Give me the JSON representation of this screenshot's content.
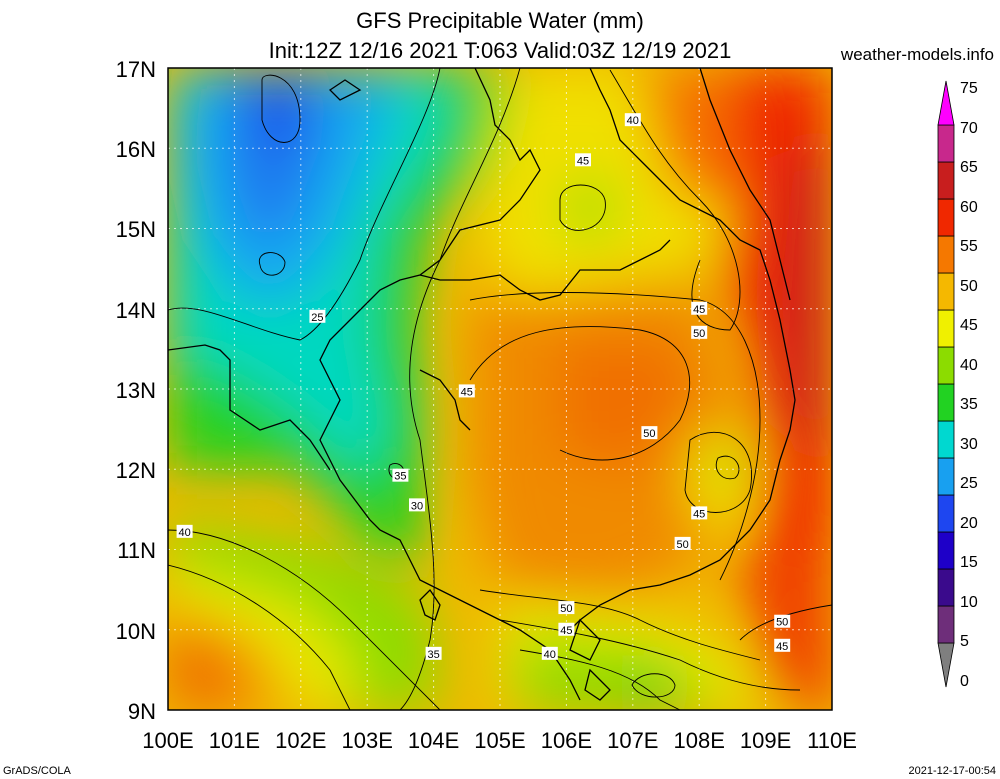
{
  "title": {
    "line1": "GFS Precipitable Water (mm)",
    "line2": "Init:12Z 12/16 2021 T:063 Valid:03Z 12/19 2021"
  },
  "site": "weather-models.info",
  "footer": {
    "left": "GrADS/COLA",
    "right": "2021-12-17-00:54"
  },
  "map": {
    "lat_labels": [
      "9N",
      "10N",
      "11N",
      "12N",
      "13N",
      "14N",
      "15N",
      "16N",
      "17N"
    ],
    "lon_labels": [
      "100E",
      "101E",
      "102E",
      "103E",
      "104E",
      "105E",
      "106E",
      "107E",
      "108E",
      "109E",
      "110E"
    ],
    "lat_range": [
      9,
      17
    ],
    "lon_range": [
      100,
      110
    ],
    "grid": true
  },
  "colorbar": {
    "labels": [
      "0",
      "5",
      "10",
      "15",
      "20",
      "25",
      "30",
      "35",
      "40",
      "45",
      "50",
      "55",
      "60",
      "65",
      "70",
      "75"
    ],
    "colors": [
      "#7f7f7f",
      "#6e2e7a",
      "#3a0a8c",
      "#1e00c8",
      "#1e46f0",
      "#18a0f0",
      "#00d8d0",
      "#22d222",
      "#8cdc00",
      "#f0f000",
      "#f5b800",
      "#f57800",
      "#f02800",
      "#c81e1e",
      "#c8288c",
      "#ff00ff"
    ]
  },
  "contour_labels": [
    {
      "text": "40",
      "lon": 107.0,
      "lat": 16.35
    },
    {
      "text": "45",
      "lon": 106.25,
      "lat": 15.85
    },
    {
      "text": "45",
      "lon": 108.0,
      "lat": 14.0
    },
    {
      "text": "50",
      "lon": 108.0,
      "lat": 13.7
    },
    {
      "text": "25",
      "lon": 102.25,
      "lat": 13.9
    },
    {
      "text": "45",
      "lon": 104.5,
      "lat": 12.97
    },
    {
      "text": "50",
      "lon": 107.25,
      "lat": 12.45
    },
    {
      "text": "35",
      "lon": 103.5,
      "lat": 11.92
    },
    {
      "text": "30",
      "lon": 103.75,
      "lat": 11.55
    },
    {
      "text": "45",
      "lon": 108.0,
      "lat": 11.45
    },
    {
      "text": "50",
      "lon": 107.75,
      "lat": 11.07
    },
    {
      "text": "40",
      "lon": 100.25,
      "lat": 11.22
    },
    {
      "text": "50",
      "lon": 106.0,
      "lat": 10.27
    },
    {
      "text": "45",
      "lon": 106.0,
      "lat": 10.0
    },
    {
      "text": "40",
      "lon": 105.75,
      "lat": 9.7
    },
    {
      "text": "35",
      "lon": 104.0,
      "lat": 9.7
    },
    {
      "text": "50",
      "lon": 109.25,
      "lat": 10.1
    },
    {
      "text": "45",
      "lon": 109.25,
      "lat": 9.8
    }
  ]
}
